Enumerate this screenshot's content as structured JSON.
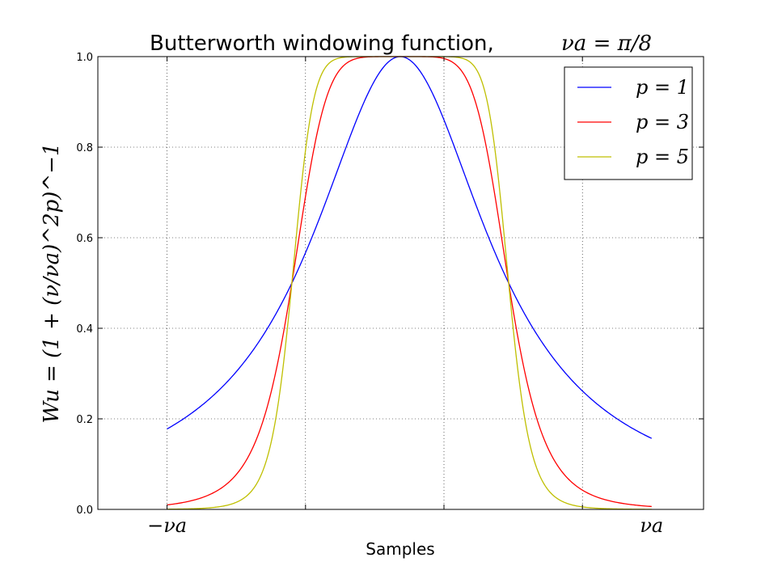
{
  "chart_data": {
    "type": "line",
    "title": "Butterworth windowing function,",
    "title_math": "νa = π/8",
    "xlabel": "Samples",
    "ylabel": "Wu = (1 + (ν/νa)^2p)^−1",
    "x_tick_labels": [
      "−νa",
      "νa"
    ],
    "y_ticks": [
      "0.0",
      "0.2",
      "0.4",
      "0.6",
      "0.8",
      "1.0"
    ],
    "ylim": [
      0,
      1
    ],
    "xlim": [
      -1.25,
      0.9375
    ],
    "x_tick_positions": [
      -1,
      1
    ],
    "grid": true,
    "legend_position": "top-right",
    "series": [
      {
        "name": "p = 1",
        "p": 1,
        "color": "#0000ff"
      },
      {
        "name": "p = 3",
        "p": 3,
        "color": "#ff0000"
      },
      {
        "name": "p = 5",
        "p": 5,
        "color": "#bfbf00"
      }
    ],
    "x_range": [
      -1,
      1
    ],
    "nu_center": -0.1578,
    "nu_half_width": 0.3915
  }
}
